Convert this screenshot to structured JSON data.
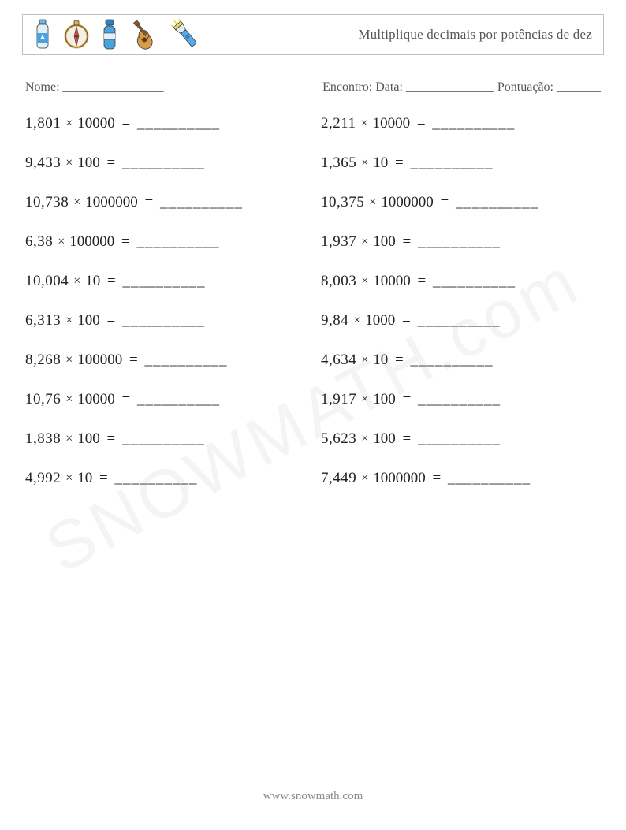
{
  "header": {
    "title": "Multiplique decimais por potências de dez",
    "icon_colors": {
      "bottle_body": "#4aa3e0",
      "bottle_cap": "#6bb6e8",
      "compass_ring": "#e0b050",
      "compass_face": "#f4f0e6",
      "compass_needle": "#d94f3a",
      "thermos_body": "#4aa3e0",
      "thermos_cap": "#2d7fbf",
      "guitar_body": "#d89b46",
      "guitar_neck": "#8a5a2b",
      "flashlight_body": "#5aa9e6",
      "flashlight_head": "#e6d95a",
      "outline": "#3a3a3a"
    }
  },
  "meta": {
    "name_label": "Nome: ________________",
    "right_label": "Encontro: Data: ______________   Pontuação: _______"
  },
  "blank": "__________",
  "problems_left": [
    {
      "a": "1,801",
      "b": "10000"
    },
    {
      "a": "9,433",
      "b": "100"
    },
    {
      "a": "10,738",
      "b": "1000000"
    },
    {
      "a": "6,38",
      "b": "100000"
    },
    {
      "a": "10,004",
      "b": "10"
    },
    {
      "a": "6,313",
      "b": "100"
    },
    {
      "a": "8,268",
      "b": "100000"
    },
    {
      "a": "10,76",
      "b": "10000"
    },
    {
      "a": "1,838",
      "b": "100"
    },
    {
      "a": "4,992",
      "b": "10"
    }
  ],
  "problems_right": [
    {
      "a": "2,211",
      "b": "10000"
    },
    {
      "a": "1,365",
      "b": "10"
    },
    {
      "a": "10,375",
      "b": "1000000"
    },
    {
      "a": "1,937",
      "b": "100"
    },
    {
      "a": "8,003",
      "b": "10000"
    },
    {
      "a": "9,84",
      "b": "1000"
    },
    {
      "a": "4,634",
      "b": "10"
    },
    {
      "a": "1,917",
      "b": "100"
    },
    {
      "a": "5,623",
      "b": "100"
    },
    {
      "a": "7,449",
      "b": "1000000"
    }
  ],
  "footer": "www.snowmath.com",
  "watermark": "SNOWMATH.com"
}
